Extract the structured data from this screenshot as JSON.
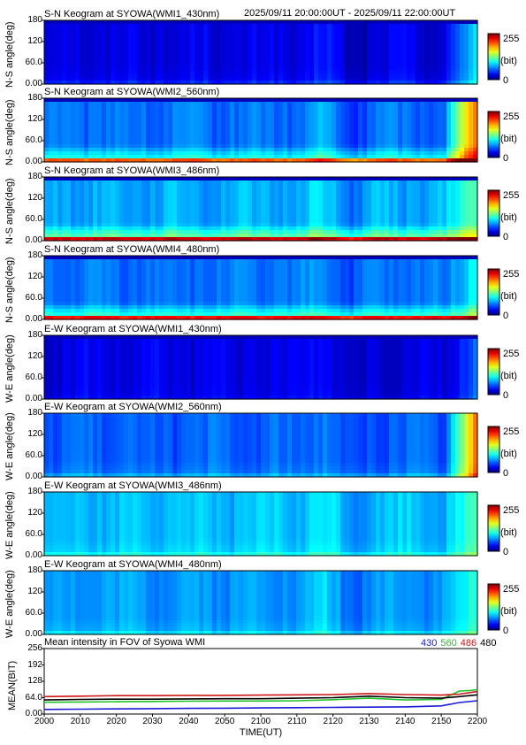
{
  "header": {
    "date_range": "2025/09/11 20:00:00UT - 2025/09/11 22:00:00UT"
  },
  "colorbar": {
    "max_label": "255",
    "unit_label": "(bit)",
    "min_label": "0"
  },
  "chart_data": [
    {
      "type": "heatmap",
      "title": "S-N Keogram at SYOWA(WMI1_430nm)",
      "ylabel": "N-S angle(deg)",
      "yticks": [
        "180",
        "120",
        "60.0",
        "0.00"
      ],
      "ylim": [
        0,
        180
      ],
      "zlim": [
        0,
        255
      ],
      "profile": {
        "base": 25,
        "edge": 15,
        "late_boost": 60
      }
    },
    {
      "type": "heatmap",
      "title": "S-N Keogram at SYOWA(WMI2_560nm)",
      "ylabel": "N-S angle(deg)",
      "yticks": [
        "180",
        "120",
        "60.0",
        "0.00"
      ],
      "ylim": [
        0,
        180
      ],
      "zlim": [
        0,
        255
      ],
      "profile": {
        "base": 60,
        "edge": 140,
        "late_boost": 140
      }
    },
    {
      "type": "heatmap",
      "title": "S-N Keogram at SYOWA(WMI3_486nm)",
      "ylabel": "N-S angle(deg)",
      "yticks": [
        "180",
        "120",
        "60.0",
        "0.00"
      ],
      "ylim": [
        0,
        180
      ],
      "zlim": [
        0,
        255
      ],
      "profile": {
        "base": 75,
        "edge": 160,
        "late_boost": 50
      }
    },
    {
      "type": "heatmap",
      "title": "S-N Keogram at SYOWA(WMI4_480nm)",
      "ylabel": "N-S angle(deg)",
      "yticks": [
        "180",
        "120",
        "60.0",
        "0.00"
      ],
      "ylim": [
        0,
        180
      ],
      "zlim": [
        0,
        255
      ],
      "profile": {
        "base": 60,
        "edge": 160,
        "late_boost": 40
      }
    },
    {
      "type": "heatmap",
      "title": "E-W Keogram at SYOWA(WMI1_430nm)",
      "ylabel": "W-E angle(deg)",
      "yticks": [
        "180",
        "120",
        "60.0",
        "0.00"
      ],
      "ylim": [
        0,
        180
      ],
      "zlim": [
        0,
        255
      ],
      "profile": {
        "base": 25,
        "edge": 5,
        "late_boost": 30
      }
    },
    {
      "type": "heatmap",
      "title": "E-W Keogram at SYOWA(WMI2_560nm)",
      "ylabel": "W-E angle(deg)",
      "yticks": [
        "180",
        "120",
        "60.0",
        "0.00"
      ],
      "ylim": [
        0,
        180
      ],
      "zlim": [
        0,
        255
      ],
      "profile": {
        "base": 55,
        "edge": 20,
        "late_boost": 130
      }
    },
    {
      "type": "heatmap",
      "title": "E-W Keogram at SYOWA(WMI3_486nm)",
      "ylabel": "W-E angle(deg)",
      "yticks": [
        "180",
        "120",
        "60.0",
        "0.00"
      ],
      "ylim": [
        0,
        180
      ],
      "zlim": [
        0,
        255
      ],
      "profile": {
        "base": 80,
        "edge": 20,
        "late_boost": 30
      }
    },
    {
      "type": "heatmap",
      "title": "E-W Keogram at SYOWA(WMI4_480nm)",
      "ylabel": "W-E angle(deg)",
      "yticks": [
        "180",
        "120",
        "60.0",
        "0.00"
      ],
      "ylim": [
        0,
        180
      ],
      "zlim": [
        0,
        255
      ],
      "profile": {
        "base": 70,
        "edge": 20,
        "late_boost": 30
      }
    },
    {
      "type": "line",
      "title": "Mean intensity in FOV of Syowa WMI",
      "ylabel": "MEAN(BIT)",
      "xlabel": "TIME(UT)",
      "yticks": [
        "256",
        "192",
        "128",
        "64.0",
        "0.00"
      ],
      "ylim": [
        0,
        256
      ],
      "xlim": [
        "2000",
        "2200"
      ],
      "xticks": [
        "2000",
        "2010",
        "2020",
        "2030",
        "2040",
        "2050",
        "2100",
        "2110",
        "2120",
        "2130",
        "2140",
        "2150",
        "2200"
      ],
      "legend_position": "top-right",
      "series": [
        {
          "name": "430",
          "color": "#1a1ad6",
          "x": [
            0,
            10,
            20,
            30,
            40,
            50,
            60,
            70,
            80,
            90,
            100,
            110,
            115,
            120
          ],
          "values": [
            18,
            19,
            20,
            21,
            22,
            23,
            24,
            25,
            26,
            27,
            28,
            32,
            45,
            52
          ]
        },
        {
          "name": "560",
          "color": "#22c22a",
          "x": [
            0,
            10,
            20,
            30,
            40,
            50,
            60,
            70,
            80,
            90,
            100,
            110,
            115,
            118,
            120
          ],
          "values": [
            46,
            47,
            48,
            49,
            50,
            51,
            51,
            52,
            56,
            62,
            55,
            57,
            90,
            92,
            95
          ]
        },
        {
          "name": "486",
          "color": "#d01818",
          "x": [
            0,
            10,
            20,
            30,
            40,
            50,
            60,
            70,
            80,
            90,
            100,
            110,
            115,
            120
          ],
          "values": [
            68,
            70,
            72,
            72,
            73,
            73,
            74,
            75,
            76,
            80,
            76,
            74,
            78,
            88
          ]
        },
        {
          "name": "480",
          "color": "#000000",
          "x": [
            0,
            10,
            20,
            30,
            40,
            50,
            60,
            70,
            80,
            90,
            100,
            110,
            115,
            120
          ],
          "values": [
            55,
            57,
            58,
            58,
            59,
            60,
            60,
            62,
            64,
            70,
            64,
            62,
            68,
            75
          ]
        }
      ]
    }
  ]
}
